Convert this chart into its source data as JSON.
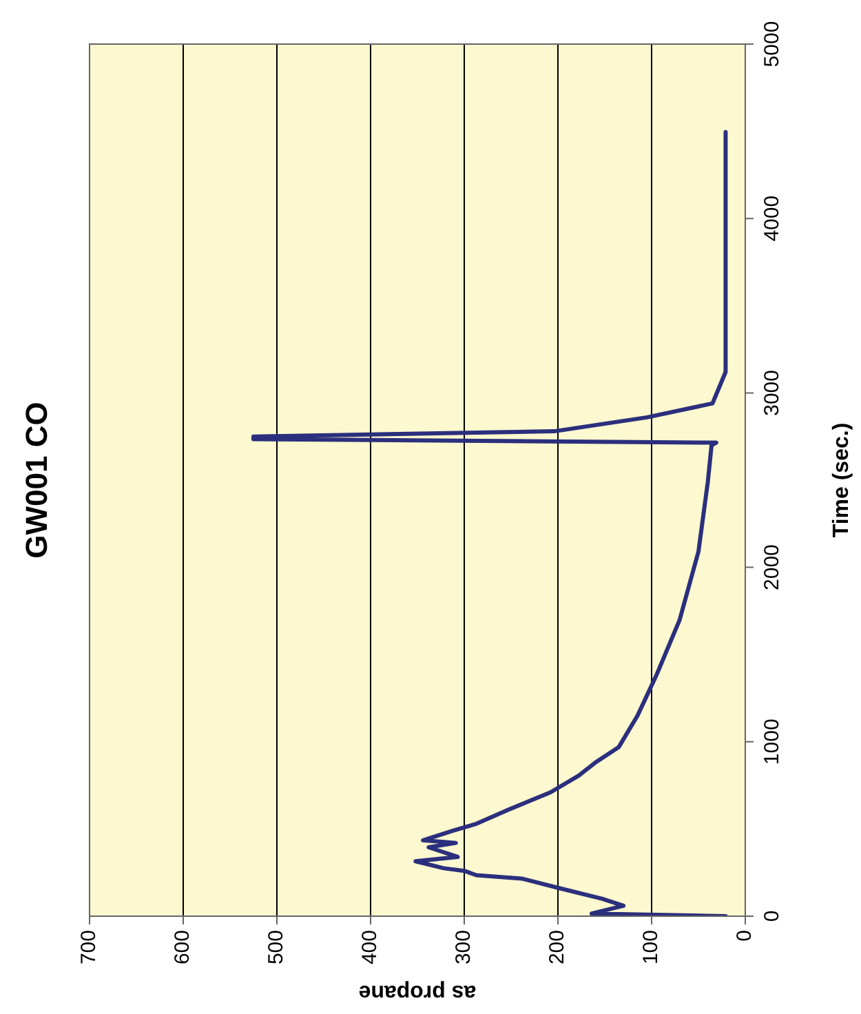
{
  "chart_data": {
    "type": "line",
    "title": "GW001 CO",
    "xlabel": "as propane",
    "ylabel": "Time (sec.)",
    "series": [
      {
        "color": "#2b2f7d",
        "x": [
          21,
          164,
          130,
          153,
          198,
          238,
          287,
          300,
          322,
          352,
          307,
          338,
          309,
          344,
          312,
          287,
          253,
          208,
          178,
          159,
          135,
          115,
          95,
          70,
          50,
          40,
          36,
          31,
          525,
          525,
          204,
          105,
          35,
          21,
          21
        ],
        "values": [
          0,
          15,
          60,
          100,
          160,
          215,
          235,
          260,
          275,
          315,
          340,
          395,
          420,
          435,
          490,
          530,
          610,
          710,
          805,
          885,
          970,
          1150,
          1380,
          1700,
          2090,
          2490,
          2700,
          2715,
          2735,
          2750,
          2780,
          2860,
          2940,
          3120,
          4495
        ]
      }
    ],
    "xlim": [
      700,
      0
    ],
    "xticks": [
      0,
      100,
      200,
      300,
      400,
      500,
      600,
      700
    ],
    "ylim": [
      0,
      5000
    ],
    "yticks": [
      0,
      1000,
      2000,
      3000,
      4000,
      5000
    ],
    "grid": "x",
    "legend": false,
    "marker": "none",
    "line_style": "solid"
  }
}
